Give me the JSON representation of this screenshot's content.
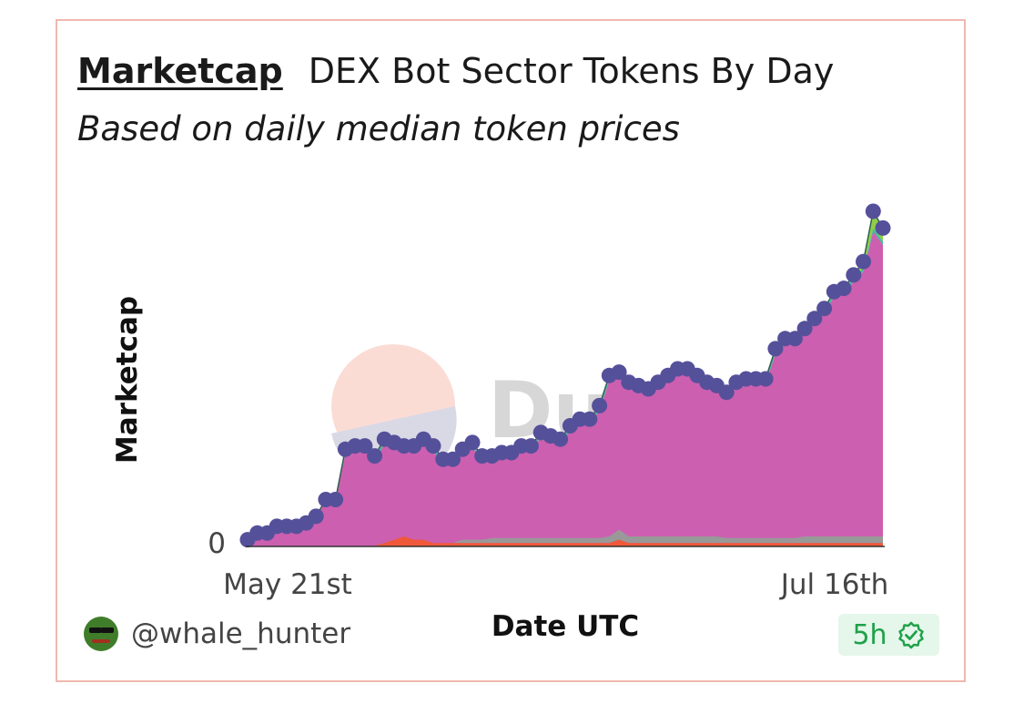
{
  "header": {
    "tab_label": "Marketcap",
    "title": "DEX Bot Sector Tokens By Day",
    "subtitle": "Based on daily median token prices"
  },
  "footer": {
    "username": "@whale_hunter",
    "age": "5h"
  },
  "watermark": {
    "text": "Dune"
  },
  "colors": {
    "marketcap": "#cc5fb0",
    "other": "#f0583a",
    "gray": "#999999",
    "teal": "#3fb9a1",
    "lime": "#8fcf45",
    "marker": "#55509a",
    "badge_green": "#1fa14a"
  },
  "chart_data": {
    "type": "area",
    "title": "DEX Bot Sector Tokens By Day",
    "subtitle": "Based on daily median token prices",
    "xlabel": "Date UTC",
    "ylabel": "Marketcap",
    "x_ticks": [
      "May 21st",
      "Jul 16th"
    ],
    "y_ticks": [
      "0"
    ],
    "ylim": [
      0,
      100
    ],
    "grid": false,
    "n_days": 66,
    "total": [
      2,
      4,
      4,
      6,
      6,
      6,
      7,
      9,
      14,
      14,
      29,
      30,
      30,
      27,
      32,
      31,
      30,
      30,
      32,
      30,
      26,
      26,
      29,
      31,
      27,
      27,
      28,
      28,
      30,
      30,
      34,
      33,
      32,
      36,
      38,
      38,
      42,
      51,
      52,
      49,
      48,
      47,
      49,
      51,
      53,
      53,
      51,
      49,
      48,
      46,
      49,
      50,
      50,
      50,
      59,
      62,
      62,
      65,
      68,
      71,
      76,
      77,
      81,
      85,
      100,
      95
    ],
    "series": [
      {
        "name": "",
        "values": [
          0,
          0,
          0,
          0,
          0,
          0,
          0,
          0,
          0,
          0,
          0,
          0,
          0,
          0.2,
          1,
          2,
          3,
          2,
          2,
          1,
          1,
          1,
          1,
          1,
          1,
          1,
          1,
          1,
          1,
          1,
          1,
          1,
          1,
          1,
          1,
          1,
          1,
          1,
          2,
          1,
          1,
          1,
          1,
          1,
          1,
          1,
          1,
          1,
          1,
          1,
          1,
          1,
          1,
          1,
          1,
          1,
          1,
          1,
          1,
          1,
          1,
          1,
          1,
          1,
          1,
          1
        ]
      },
      {
        "name": "",
        "values": [
          0,
          0,
          0,
          0,
          0,
          0,
          0,
          0,
          0,
          0,
          0,
          0,
          0,
          0,
          0,
          0,
          0,
          0,
          0,
          0,
          0,
          0,
          1,
          1,
          1,
          1.5,
          1.5,
          1.5,
          1.5,
          1.5,
          1.5,
          1.5,
          1.5,
          1.5,
          1.5,
          1.5,
          1.5,
          2,
          3,
          2,
          2,
          2,
          2,
          2,
          2,
          2,
          2,
          2,
          2,
          1.5,
          1.5,
          1.5,
          1.5,
          1.5,
          1.5,
          1.5,
          1.5,
          2,
          2,
          2,
          2,
          2,
          2,
          2,
          2,
          2
        ]
      },
      {
        "name": "",
        "values": [
          0,
          0,
          0,
          0,
          0,
          0,
          0,
          0,
          0,
          0,
          1,
          1,
          1,
          1,
          1,
          1,
          1,
          1,
          1,
          1,
          1,
          1,
          1,
          1,
          1,
          1,
          1,
          1,
          1,
          1,
          1,
          1,
          1,
          1,
          1,
          1,
          1,
          1,
          1,
          1,
          1,
          1,
          1,
          1,
          1,
          1,
          1,
          1,
          1,
          1,
          1,
          1,
          1,
          1,
          1,
          1,
          1,
          1,
          1,
          1,
          1,
          1,
          1,
          1,
          1,
          1
        ]
      },
      {
        "name": "",
        "values": [
          0,
          0,
          0,
          0,
          0,
          0,
          0,
          0,
          0,
          0,
          0.5,
          0.5,
          0.5,
          0.5,
          0.5,
          0.5,
          0.5,
          0.5,
          0.5,
          0.5,
          0.5,
          0.5,
          0.5,
          0.5,
          0.5,
          0.5,
          0.5,
          0.5,
          0.5,
          0.5,
          0.5,
          0.5,
          0.5,
          0.5,
          0.5,
          0.5,
          0.5,
          0.5,
          0.5,
          0.5,
          0.5,
          0.5,
          0.5,
          0.5,
          0.5,
          0.5,
          0.5,
          0.5,
          0.5,
          0.5,
          0.5,
          0.5,
          0.5,
          0.5,
          0.5,
          0.5,
          0.5,
          0.5,
          0.5,
          0.5,
          0.5,
          0.5,
          1,
          2,
          5,
          4
        ]
      }
    ]
  }
}
